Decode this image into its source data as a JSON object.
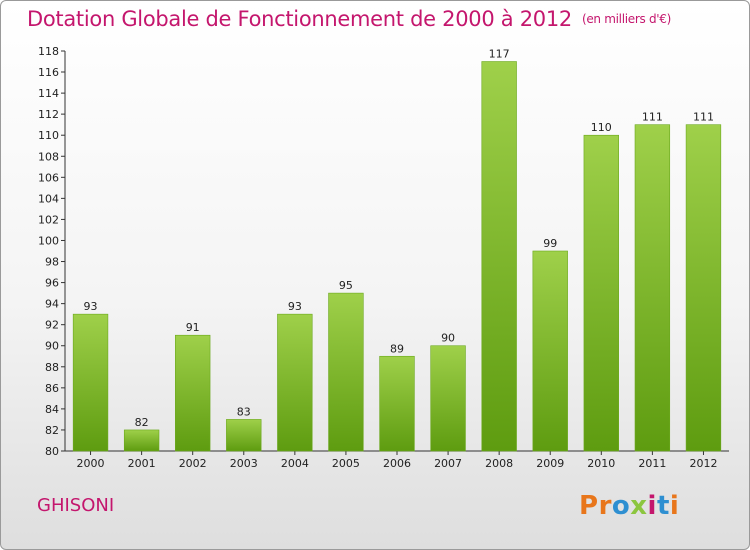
{
  "header": {
    "title": "Dotation Globale de Fonctionnement de 2000 à 2012",
    "subtitle": "(en milliers d'€)"
  },
  "footer": {
    "commune": "GHISONI",
    "brand": "Proxiti",
    "brand_colors": [
      "#e8761b",
      "#e8761b",
      "#2e8fd1",
      "#8cc63f",
      "#c4166d",
      "#2e8fd1",
      "#e8761b"
    ]
  },
  "chart_data": {
    "type": "bar",
    "categories": [
      "2000",
      "2001",
      "2002",
      "2003",
      "2004",
      "2005",
      "2006",
      "2007",
      "2008",
      "2009",
      "2010",
      "2011",
      "2012"
    ],
    "values": [
      93,
      82,
      91,
      83,
      93,
      95,
      89,
      90,
      117,
      99,
      110,
      111,
      111
    ],
    "ylim": [
      80,
      118
    ],
    "yticks": [
      80,
      82,
      84,
      86,
      88,
      90,
      92,
      94,
      96,
      98,
      100,
      102,
      104,
      106,
      108,
      110,
      112,
      114,
      116,
      118
    ],
    "grid": false,
    "colors": {
      "bar_light": "#9fd04a",
      "bar_dark": "#5e9c10",
      "text": "#222222",
      "title": "#c4166d"
    }
  }
}
